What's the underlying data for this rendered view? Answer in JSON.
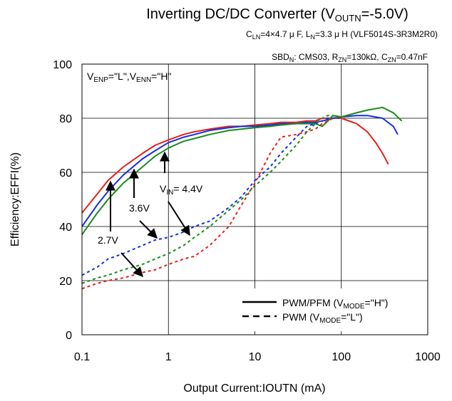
{
  "chart_data": {
    "type": "line",
    "title": {
      "main": "Inverting DC/DC Converter (V",
      "sub": "OUTN",
      "tail": "=-5.0V)"
    },
    "subtitle": {
      "a": "C",
      "a_sub": "LN",
      "b": "=4×4.7 μ F, L",
      "b_sub": "N",
      "c": "=3.3 μ H (VLF5014S-3R3M2R0)"
    },
    "condition": {
      "a": "SBD",
      "a_sub": "N",
      "b": ": CMS03, R",
      "b_sub": "ZN",
      "c": "=130kΩ, C",
      "c_sub": "ZN",
      "d": "=0.47nF"
    },
    "enable_note": {
      "a": "V",
      "a_sub": "ENP",
      "b": "=\"L\",V",
      "b_sub": "ENN",
      "c": "=\"H\""
    },
    "xlabel": "Output Current:IOUTN (mA)",
    "ylabel": "Efficiency:EFFI(%)",
    "xscale": "log",
    "xlim": [
      0.1,
      1000
    ],
    "ylim": [
      0,
      100
    ],
    "grid": true,
    "x_ticks": [
      "0.1",
      "1",
      "10",
      "100",
      "1000"
    ],
    "y_ticks": [
      "0",
      "20",
      "40",
      "60",
      "80",
      "100"
    ],
    "legend": {
      "placement": "bottom-right",
      "solid_a": "PWM/PFM (V",
      "solid_sub": "MODE",
      "solid_b": "=\"H\")",
      "dashed_a": "PWM (V",
      "dashed_sub": "MODE",
      "dashed_b": "=\"L\")"
    },
    "annotations": {
      "v27": "2.7V",
      "v36": "3.6V",
      "v44_a": "V",
      "v44_sub": "IN",
      "v44_b": "= 4.4V"
    },
    "colors": {
      "vin_2_7": "#e8201a",
      "vin_3_6": "#1530e0",
      "vin_4_4": "#1a8a1a"
    },
    "series": [
      {
        "vin": "2.7V",
        "mode": "PWM/PFM",
        "style": "solid",
        "color": "#e8201a",
        "x": [
          0.1,
          0.15,
          0.2,
          0.3,
          0.5,
          0.7,
          1,
          1.5,
          2,
          3,
          5,
          7,
          10,
          15,
          20,
          30,
          40,
          50,
          60,
          70,
          80,
          100,
          150,
          200,
          250,
          300,
          350
        ],
        "y": [
          45,
          52,
          57,
          62,
          67,
          70,
          72,
          74,
          75,
          76,
          77,
          77,
          77.5,
          78,
          78.5,
          78.5,
          79,
          79,
          80,
          80,
          80,
          80,
          78,
          75,
          71,
          67,
          63
        ]
      },
      {
        "vin": "3.6V",
        "mode": "PWM/PFM",
        "style": "solid",
        "color": "#1530e0",
        "x": [
          0.1,
          0.15,
          0.2,
          0.3,
          0.5,
          0.7,
          1,
          1.5,
          2,
          3,
          5,
          7,
          10,
          15,
          20,
          30,
          40,
          50,
          60,
          70,
          80,
          100,
          150,
          200,
          300,
          400,
          450
        ],
        "y": [
          40,
          48,
          53,
          59,
          65,
          68,
          71,
          73,
          74,
          75.5,
          76.5,
          77,
          77,
          77.5,
          78,
          78,
          78.5,
          78.5,
          79,
          79.5,
          80,
          80.5,
          81,
          81,
          80,
          77,
          74
        ]
      },
      {
        "vin": "4.4V",
        "mode": "PWM/PFM",
        "style": "solid",
        "color": "#1a8a1a",
        "x": [
          0.1,
          0.15,
          0.2,
          0.3,
          0.5,
          0.7,
          1,
          1.5,
          2,
          3,
          5,
          7,
          10,
          15,
          20,
          30,
          40,
          50,
          60,
          70,
          80,
          100,
          150,
          200,
          300,
          400,
          500
        ],
        "y": [
          37,
          45,
          50,
          56,
          62,
          66,
          69,
          71.5,
          72.5,
          74,
          75.5,
          76,
          76.5,
          77,
          77.5,
          78,
          78,
          78,
          77,
          79,
          81,
          80.5,
          82,
          83,
          84,
          82,
          79
        ]
      },
      {
        "vin": "2.7V",
        "mode": "PWM",
        "style": "dashed",
        "color": "#e8201a",
        "x": [
          0.1,
          0.15,
          0.2,
          0.3,
          0.5,
          0.7,
          1,
          1.5,
          2,
          3,
          5,
          7,
          10,
          15,
          20,
          30,
          40,
          50,
          60,
          70,
          80,
          100
        ],
        "y": [
          17,
          19,
          20,
          21,
          23,
          24,
          26,
          28,
          29,
          33,
          40,
          48,
          56,
          67,
          73,
          74,
          75,
          76,
          78,
          79,
          80,
          80
        ]
      },
      {
        "vin": "3.6V",
        "mode": "PWM",
        "style": "dashed",
        "color": "#1530e0",
        "x": [
          0.1,
          0.15,
          0.2,
          0.3,
          0.5,
          0.7,
          1,
          1.5,
          2,
          3,
          5,
          7,
          10,
          15,
          20,
          30,
          40,
          50,
          60,
          70,
          80,
          100
        ],
        "y": [
          22,
          25,
          28,
          30,
          33,
          35,
          36,
          38,
          40,
          42,
          47,
          51,
          57,
          62,
          67,
          73,
          77,
          78,
          79,
          80,
          80,
          80
        ]
      },
      {
        "vin": "4.4V",
        "mode": "PWM",
        "style": "dashed",
        "color": "#1a8a1a",
        "x": [
          0.1,
          0.15,
          0.2,
          0.3,
          0.5,
          0.7,
          1,
          1.5,
          2,
          3,
          5,
          7,
          10,
          15,
          20,
          30,
          40,
          50,
          60,
          70,
          80,
          100
        ],
        "y": [
          19,
          21,
          22,
          24,
          26,
          28,
          30,
          33,
          36,
          40,
          46,
          50,
          55,
          60,
          64,
          70,
          75,
          78,
          80,
          81,
          81,
          80
        ]
      }
    ]
  }
}
